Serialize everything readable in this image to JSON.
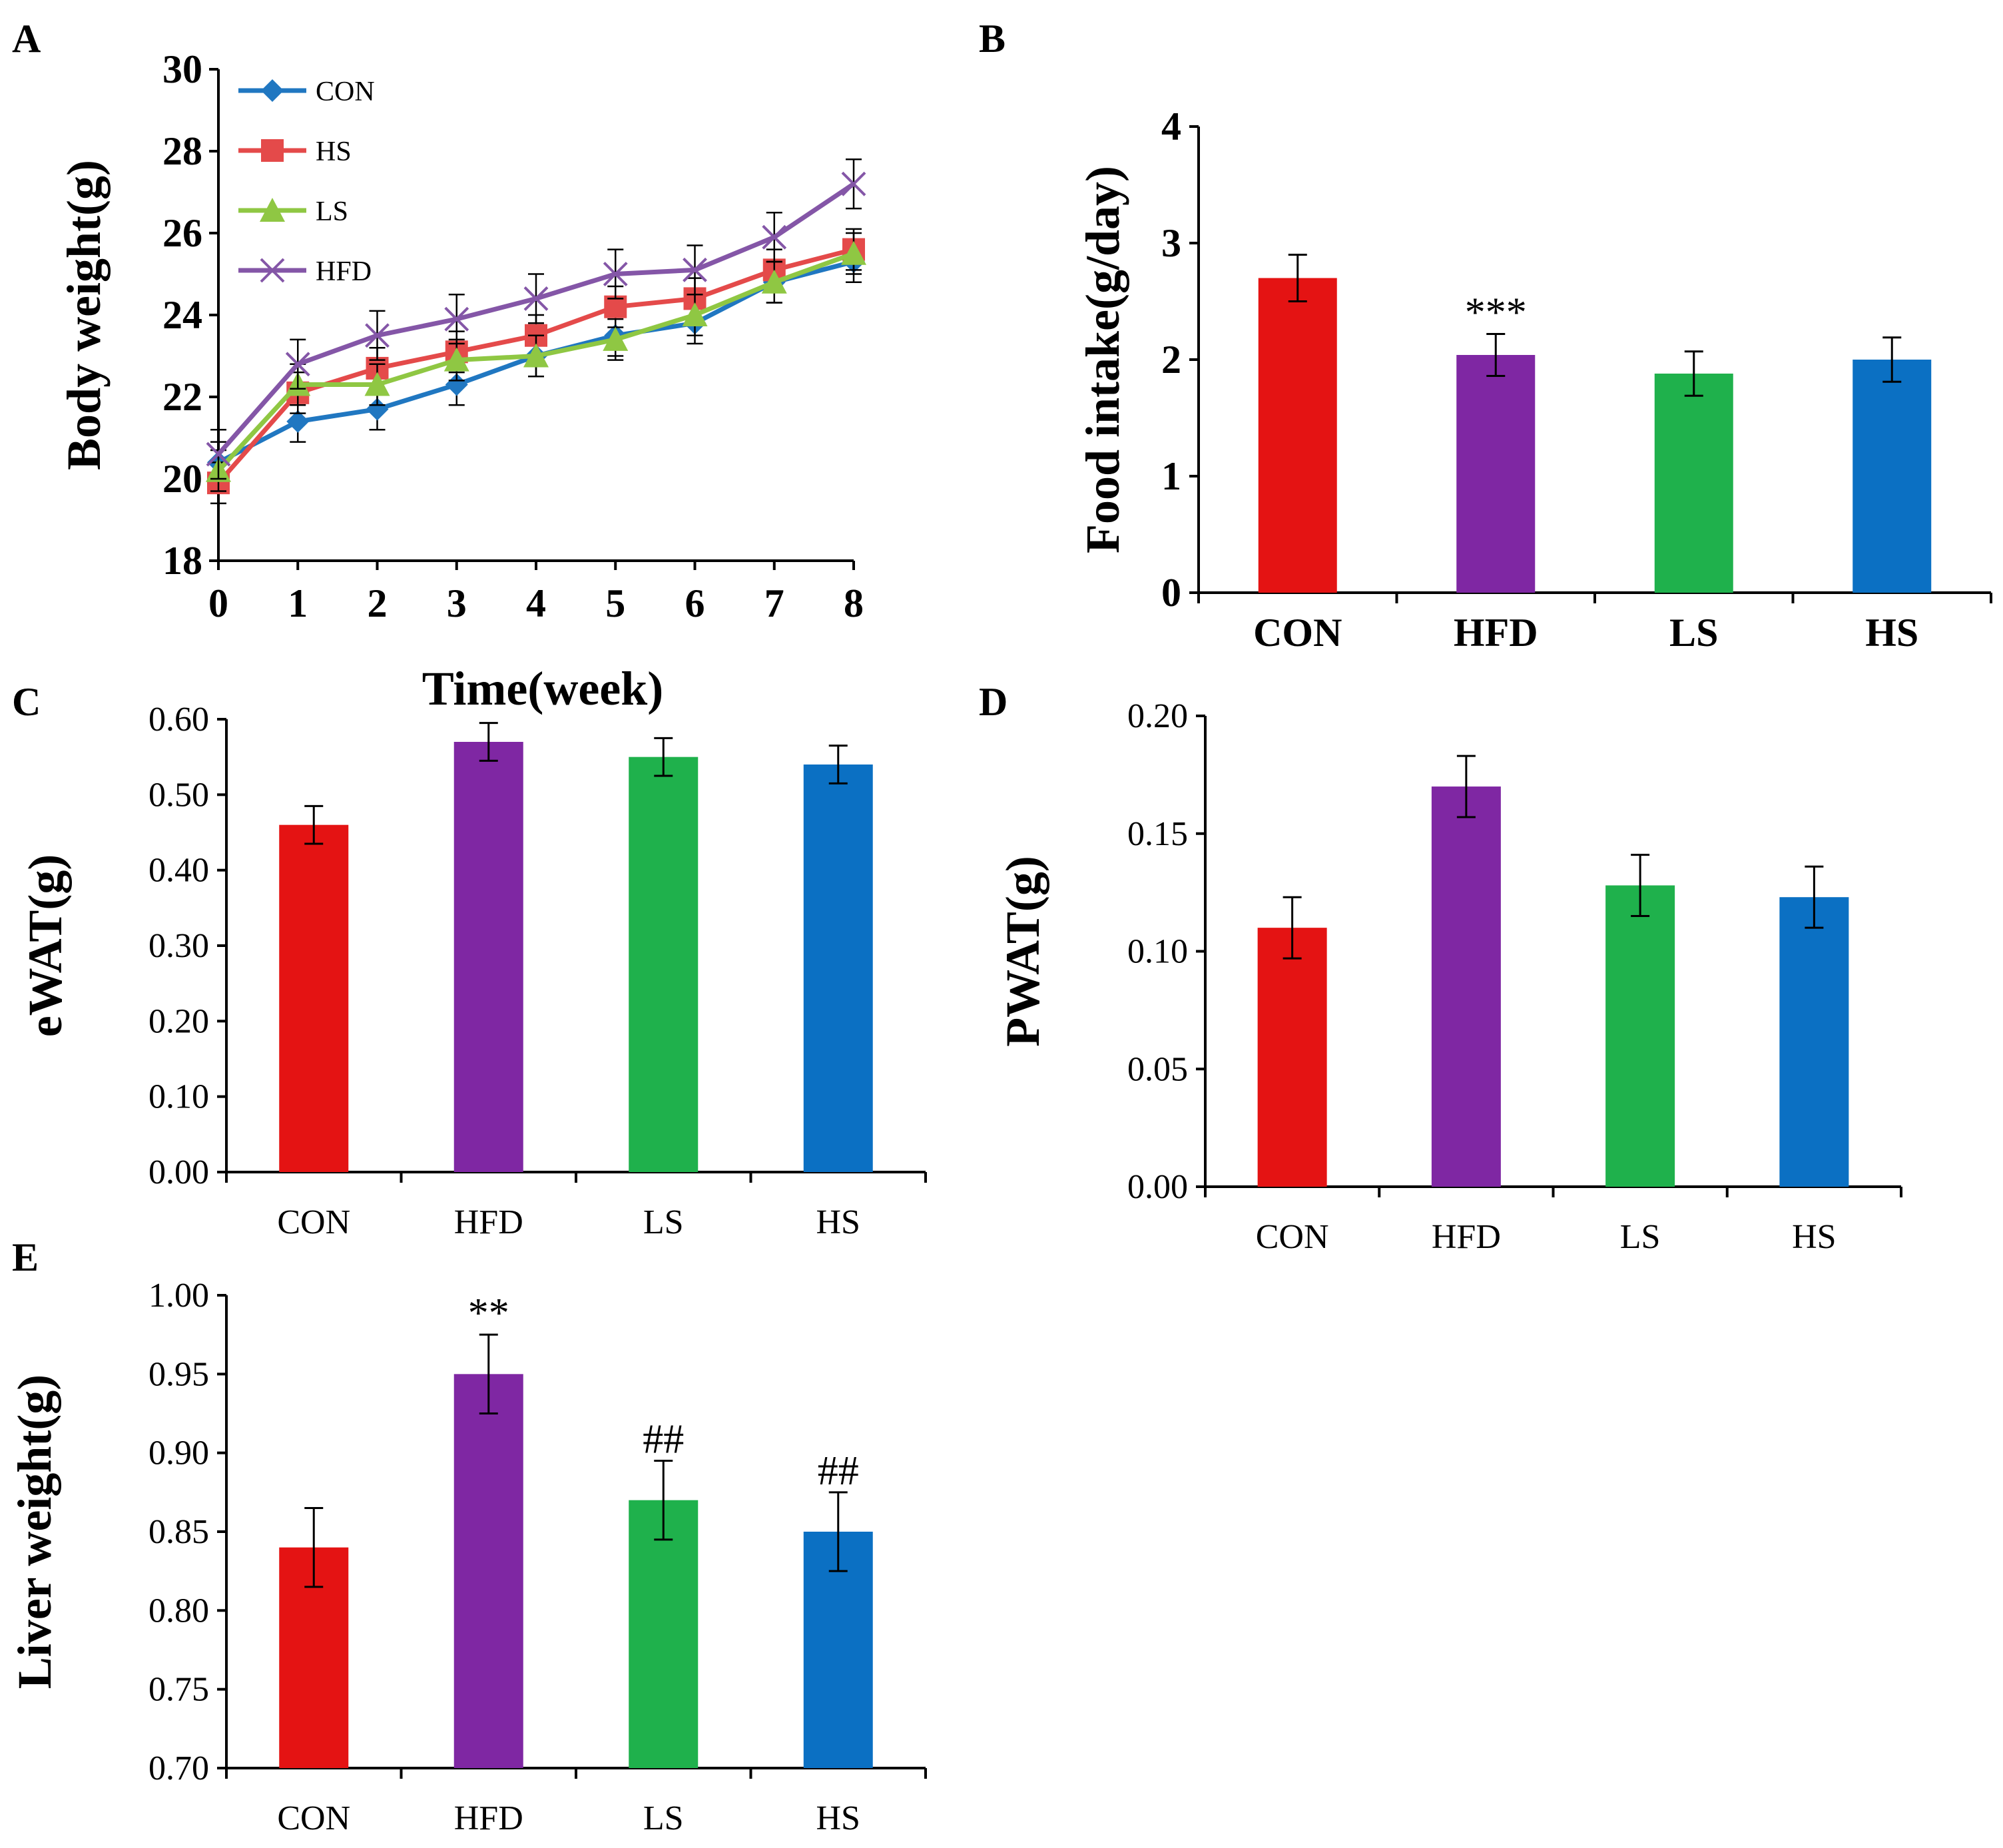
{
  "colors": {
    "CON": "#e41313",
    "HFD": "#7f27a3",
    "LS": "#1fb14c",
    "HS": "#0b70c3",
    "line_CON": "#2077c1",
    "line_HS": "#e44a4a",
    "line_LS": "#8fc743",
    "line_HFD": "#8456a7",
    "axis": "#000000"
  },
  "chart_data": [
    {
      "panel": "A",
      "type": "line",
      "x": [
        0,
        1,
        2,
        3,
        4,
        5,
        6,
        7,
        8
      ],
      "xticks": [
        "0",
        "1",
        "2",
        "3",
        "4",
        "5",
        "6",
        "7",
        "8"
      ],
      "xlabel": "Time(week)",
      "ylabel": "Body weight(g)",
      "ylim": [
        18,
        30
      ],
      "yticks": [
        "18",
        "20",
        "22",
        "24",
        "26",
        "28",
        "30"
      ],
      "legend_position": "top-left",
      "series": [
        {
          "name": "CON",
          "marker": "diamond",
          "values": [
            20.4,
            21.4,
            21.7,
            22.3,
            23.0,
            23.5,
            23.8,
            24.8,
            25.3
          ],
          "errors": [
            0.5,
            0.5,
            0.5,
            0.5,
            0.5,
            0.5,
            0.5,
            0.5,
            0.5
          ]
        },
        {
          "name": "HS",
          "marker": "square",
          "values": [
            19.9,
            22.1,
            22.7,
            23.1,
            23.5,
            24.2,
            24.4,
            25.1,
            25.6
          ],
          "errors": [
            0.5,
            0.5,
            0.5,
            0.5,
            0.5,
            0.5,
            0.5,
            0.5,
            0.5
          ]
        },
        {
          "name": "LS",
          "marker": "triangle",
          "values": [
            20.2,
            22.3,
            22.3,
            22.9,
            23.0,
            23.4,
            24.0,
            24.8,
            25.5
          ],
          "errors": [
            0.5,
            0.5,
            0.5,
            0.5,
            0.5,
            0.5,
            0.5,
            0.5,
            0.5
          ]
        },
        {
          "name": "HFD",
          "marker": "x",
          "values": [
            20.6,
            22.8,
            23.5,
            23.9,
            24.4,
            25.0,
            25.1,
            25.9,
            27.2
          ],
          "errors": [
            0.6,
            0.6,
            0.6,
            0.6,
            0.6,
            0.6,
            0.6,
            0.6,
            0.6
          ]
        }
      ]
    },
    {
      "panel": "B",
      "type": "bar",
      "categories": [
        "CON",
        "HFD",
        "LS",
        "HS"
      ],
      "values": [
        2.7,
        2.04,
        1.88,
        2.0
      ],
      "errors": [
        0.2,
        0.18,
        0.19,
        0.19
      ],
      "annotations": [
        "",
        "***",
        "",
        ""
      ],
      "ylabel": "Food intake(g/day)",
      "ylim": [
        0,
        4
      ],
      "yticks": [
        "0",
        "1",
        "2",
        "3",
        "4"
      ]
    },
    {
      "panel": "C",
      "type": "bar",
      "categories": [
        "CON",
        "HFD",
        "LS",
        "HS"
      ],
      "values": [
        0.46,
        0.57,
        0.55,
        0.54
      ],
      "errors": [
        0.025,
        0.025,
        0.025,
        0.025
      ],
      "annotations": [
        "",
        "",
        "",
        ""
      ],
      "ylabel": "eWAT(g)",
      "ylim": [
        0,
        0.6
      ],
      "yticks": [
        "0.00",
        "0.10",
        "0.20",
        "0.30",
        "0.40",
        "0.50",
        "0.60"
      ]
    },
    {
      "panel": "D",
      "type": "bar",
      "categories": [
        "CON",
        "HFD",
        "LS",
        "HS"
      ],
      "values": [
        0.11,
        0.17,
        0.128,
        0.123
      ],
      "errors": [
        0.013,
        0.013,
        0.013,
        0.013
      ],
      "annotations": [
        "",
        "",
        "",
        ""
      ],
      "ylabel": "PWAT(g)",
      "ylim": [
        0,
        0.2
      ],
      "yticks": [
        "0.00",
        "0.05",
        "0.10",
        "0.15",
        "0.20"
      ]
    },
    {
      "panel": "E",
      "type": "bar",
      "categories": [
        "CON",
        "HFD",
        "LS",
        "HS"
      ],
      "values": [
        0.84,
        0.95,
        0.87,
        0.85
      ],
      "errors": [
        0.025,
        0.025,
        0.025,
        0.025
      ],
      "annotations": [
        "",
        "**",
        "##",
        "##"
      ],
      "ylabel": "Liver weight(g)",
      "ylim": [
        0.7,
        1.0
      ],
      "yticks": [
        "0.70",
        "0.75",
        "0.80",
        "0.85",
        "0.90",
        "0.95",
        "1.00"
      ]
    }
  ]
}
